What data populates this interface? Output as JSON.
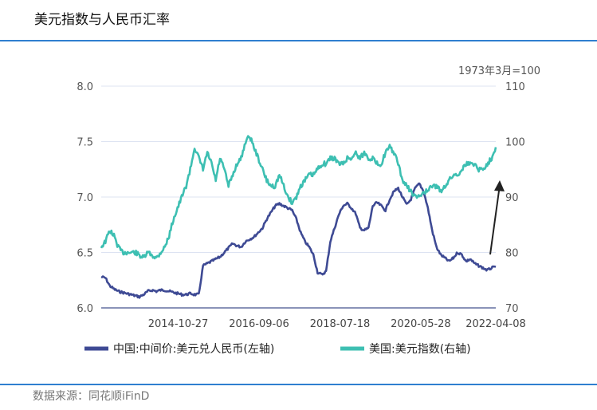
{
  "header": {
    "title": "美元指数与人民币汇率"
  },
  "footer": {
    "source": "数据来源：同花顺iFinD"
  },
  "chart_data": {
    "type": "line",
    "title": "美元指数与人民币汇率",
    "annotation": "1973年3月=100",
    "x_tick_labels": [
      "2014-10-27",
      "2016-09-06",
      "2018-07-18",
      "2020-05-28",
      "2022-04-08"
    ],
    "y_left": {
      "ticks": [
        "6.0",
        "6.5",
        "7.0",
        "7.5",
        "8.0"
      ],
      "range": [
        6.0,
        8.0
      ]
    },
    "y_right": {
      "ticks": [
        "70",
        "80",
        "90",
        "100",
        "110"
      ],
      "range": [
        70,
        110
      ]
    },
    "colors": {
      "cny": "#3e4a94",
      "dxy": "#3dbfb2",
      "arrow": "#222222",
      "grid": "#dde3f2",
      "axis": "#8a93b8"
    },
    "legend": [
      {
        "name": "中国:中间价:美元兑人民币(左轴)",
        "axis": "left"
      },
      {
        "name": "美国:美元指数(右轴)",
        "axis": "right"
      }
    ],
    "series": [
      {
        "name": "中国:中间价:美元兑人民币(左轴)",
        "axis": "left",
        "values": [
          6.28,
          6.27,
          6.2,
          6.17,
          6.15,
          6.14,
          6.13,
          6.12,
          6.11,
          6.1,
          6.12,
          6.15,
          6.16,
          6.15,
          6.16,
          6.16,
          6.15,
          6.14,
          6.13,
          6.12,
          6.12,
          6.13,
          6.12,
          6.12,
          6.38,
          6.4,
          6.42,
          6.44,
          6.46,
          6.5,
          6.54,
          6.58,
          6.56,
          6.55,
          6.6,
          6.62,
          6.64,
          6.68,
          6.72,
          6.8,
          6.86,
          6.92,
          6.94,
          6.92,
          6.9,
          6.88,
          6.8,
          6.68,
          6.6,
          6.55,
          6.48,
          6.32,
          6.3,
          6.33,
          6.6,
          6.72,
          6.84,
          6.92,
          6.94,
          6.9,
          6.85,
          6.72,
          6.7,
          6.72,
          6.92,
          6.95,
          6.92,
          6.88,
          6.98,
          7.05,
          7.08,
          7.0,
          6.93,
          6.98,
          7.08,
          7.12,
          7.05,
          6.9,
          6.7,
          6.55,
          6.48,
          6.45,
          6.42,
          6.45,
          6.5,
          6.48,
          6.42,
          6.44,
          6.4,
          6.38,
          6.36,
          6.34,
          6.36,
          6.37
        ]
      },
      {
        "name": "美国:美元指数(右轴)",
        "axis": "right",
        "values": [
          81,
          82,
          84,
          83,
          81,
          80,
          80,
          80,
          80,
          79.5,
          79,
          80,
          79.5,
          79,
          80,
          81,
          83,
          86,
          88,
          90,
          92,
          95,
          99,
          97,
          95,
          98,
          96,
          93,
          97,
          95,
          92,
          94,
          96,
          97,
          100,
          101,
          99,
          97,
          95,
          93,
          92,
          92,
          94,
          92,
          90,
          89,
          90,
          92,
          93,
          94,
          94,
          95,
          96,
          96,
          97,
          97,
          96,
          96,
          97,
          97,
          98,
          97,
          98,
          97,
          97,
          96,
          96,
          98,
          99,
          98,
          96,
          93,
          92,
          91,
          90,
          90,
          91,
          91,
          92,
          92,
          91,
          92,
          93,
          94,
          94,
          95,
          96,
          96,
          96,
          95,
          95,
          96,
          97,
          99
        ]
      }
    ]
  }
}
